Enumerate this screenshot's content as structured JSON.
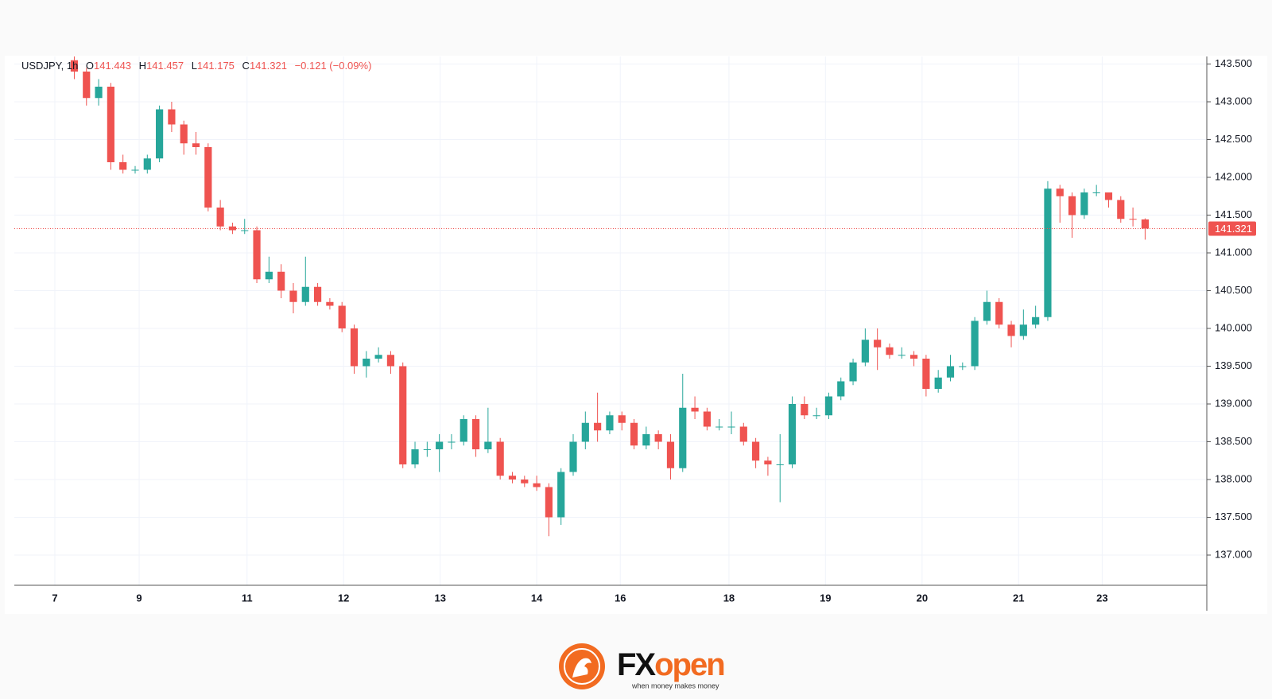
{
  "chart_data": {
    "type": "candlestick",
    "symbol": "USDJPY, 1h",
    "ohlc_labels": [
      "O",
      "H",
      "L",
      "C"
    ],
    "change_label": "−0.121 (−0.09%)",
    "up_color": "#26a69a",
    "down_color": "#ef5350",
    "grid": true,
    "x": [
      0,
      1,
      2,
      3,
      4,
      5,
      6,
      7,
      8,
      9,
      10,
      11,
      12,
      13,
      14,
      15,
      16,
      17,
      18,
      19,
      20,
      21,
      22,
      23,
      24,
      25,
      26,
      27,
      28,
      29,
      30,
      31,
      32,
      33,
      34,
      35,
      36,
      37,
      38,
      39,
      40,
      41,
      42,
      43,
      44,
      45,
      46,
      47,
      48,
      49,
      50,
      51,
      52,
      53,
      54,
      55,
      56,
      57,
      58,
      59,
      60,
      61,
      62,
      63,
      64,
      65,
      66,
      67,
      68,
      69,
      70,
      71,
      72,
      73,
      74,
      75,
      76,
      77,
      78,
      79,
      80,
      81,
      82,
      83,
      84,
      85,
      86,
      87,
      88
    ],
    "open": [
      143.55,
      143.4,
      143.05,
      143.2,
      142.2,
      142.1,
      142.1,
      142.25,
      142.9,
      142.7,
      142.45,
      142.4,
      141.6,
      141.35,
      141.3,
      141.3,
      140.65,
      140.75,
      140.5,
      140.35,
      140.55,
      140.35,
      140.3,
      140.0,
      139.5,
      139.6,
      139.65,
      139.5,
      138.2,
      138.4,
      138.4,
      138.5,
      138.5,
      138.8,
      138.4,
      138.5,
      138.05,
      138.0,
      137.95,
      137.9,
      137.5,
      138.1,
      138.5,
      138.75,
      138.65,
      138.85,
      138.75,
      138.45,
      138.6,
      138.5,
      138.15,
      138.95,
      138.9,
      138.7,
      138.7,
      138.7,
      138.5,
      138.25,
      138.2,
      138.2,
      139.0,
      138.85,
      138.85,
      139.1,
      139.3,
      139.55,
      139.85,
      139.75,
      139.65,
      139.65,
      139.6,
      139.2,
      139.35,
      139.5,
      139.5,
      140.1,
      140.35,
      140.05,
      139.9,
      140.05,
      140.15,
      141.85,
      141.75,
      141.5,
      141.8,
      141.8,
      141.7,
      141.45,
      141.443
    ],
    "high": [
      143.6,
      143.45,
      143.3,
      143.25,
      142.3,
      142.15,
      142.3,
      142.95,
      143.0,
      142.75,
      142.6,
      142.45,
      141.7,
      141.4,
      141.45,
      141.35,
      140.95,
      140.85,
      140.6,
      140.95,
      140.6,
      140.4,
      140.35,
      140.05,
      139.7,
      139.75,
      139.7,
      139.55,
      138.5,
      138.5,
      138.6,
      138.6,
      138.85,
      138.85,
      138.95,
      138.55,
      138.1,
      138.05,
      138.05,
      137.95,
      138.15,
      138.6,
      138.9,
      139.15,
      138.9,
      138.9,
      138.8,
      138.7,
      138.65,
      138.6,
      139.4,
      139.1,
      138.95,
      138.8,
      138.9,
      138.75,
      138.55,
      138.3,
      138.6,
      139.1,
      139.1,
      138.95,
      139.15,
      139.35,
      139.6,
      140.0,
      140.0,
      139.8,
      139.75,
      139.7,
      139.65,
      139.45,
      139.65,
      139.55,
      140.15,
      140.5,
      140.4,
      140.1,
      140.25,
      140.3,
      141.95,
      141.9,
      141.8,
      141.85,
      141.9,
      141.8,
      141.75,
      141.6,
      141.457
    ],
    "low": [
      143.3,
      142.95,
      142.95,
      142.1,
      142.05,
      142.05,
      142.05,
      142.2,
      142.6,
      142.3,
      142.3,
      141.55,
      141.3,
      141.25,
      141.25,
      140.6,
      140.6,
      140.4,
      140.2,
      140.3,
      140.3,
      140.25,
      139.95,
      139.4,
      139.35,
      139.55,
      139.4,
      138.15,
      138.15,
      138.3,
      138.1,
      138.4,
      138.45,
      138.3,
      138.35,
      138.0,
      137.95,
      137.9,
      137.85,
      137.25,
      137.4,
      138.05,
      138.4,
      138.5,
      138.6,
      138.65,
      138.4,
      138.4,
      138.4,
      138.0,
      138.1,
      138.8,
      138.65,
      138.65,
      138.6,
      138.45,
      138.15,
      138.05,
      137.7,
      138.15,
      138.8,
      138.8,
      138.8,
      139.05,
      139.25,
      139.5,
      139.45,
      139.6,
      139.6,
      139.5,
      139.1,
      139.15,
      139.3,
      139.45,
      139.45,
      140.05,
      140.0,
      139.75,
      139.85,
      140.0,
      140.1,
      141.4,
      141.2,
      141.45,
      141.75,
      141.6,
      141.4,
      141.35,
      141.175
    ],
    "close": [
      143.4,
      143.05,
      143.2,
      142.2,
      142.1,
      142.1,
      142.25,
      142.9,
      142.7,
      142.45,
      142.4,
      141.6,
      141.35,
      141.3,
      141.3,
      140.65,
      140.75,
      140.5,
      140.35,
      140.55,
      140.35,
      140.3,
      140.0,
      139.5,
      139.6,
      139.65,
      139.5,
      138.2,
      138.4,
      138.4,
      138.5,
      138.5,
      138.8,
      138.4,
      138.5,
      138.05,
      138.0,
      137.95,
      137.9,
      137.5,
      138.1,
      138.5,
      138.75,
      138.65,
      138.85,
      138.75,
      138.45,
      138.6,
      138.5,
      138.15,
      138.95,
      138.9,
      138.7,
      138.7,
      138.7,
      138.5,
      138.25,
      138.2,
      138.2,
      139.0,
      138.85,
      138.85,
      139.1,
      139.3,
      139.55,
      139.85,
      139.75,
      139.65,
      139.65,
      139.6,
      139.2,
      139.35,
      139.5,
      139.5,
      140.1,
      140.35,
      140.05,
      139.9,
      140.05,
      140.15,
      141.85,
      141.75,
      141.5,
      141.8,
      141.8,
      141.7,
      141.45,
      141.443,
      141.321
    ],
    "xlim": [
      -4.93,
      93.07
    ],
    "xticks": [
      {
        "value": -1.6,
        "label": "7"
      },
      {
        "value": 5.33,
        "label": "9"
      },
      {
        "value": 14.2,
        "label": "11"
      },
      {
        "value": 22.13,
        "label": "12"
      },
      {
        "value": 30.07,
        "label": "13"
      },
      {
        "value": 38,
        "label": "14"
      },
      {
        "value": 44.87,
        "label": "16"
      },
      {
        "value": 53.8,
        "label": "18"
      },
      {
        "value": 61.73,
        "label": "19"
      },
      {
        "value": 69.67,
        "label": "20"
      },
      {
        "value": 77.6,
        "label": "21"
      },
      {
        "value": 84.47,
        "label": "23"
      }
    ],
    "ylim": [
      136.6,
      143.6
    ],
    "yticks": [
      {
        "value": 137,
        "label": "137.000"
      },
      {
        "value": 137.5,
        "label": "137.500"
      },
      {
        "value": 138,
        "label": "138.000"
      },
      {
        "value": 138.5,
        "label": "138.500"
      },
      {
        "value": 139,
        "label": "139.000"
      },
      {
        "value": 139.5,
        "label": "139.500"
      },
      {
        "value": 140,
        "label": "140.000"
      },
      {
        "value": 140.5,
        "label": "140.500"
      },
      {
        "value": 141,
        "label": "141.000"
      },
      {
        "value": 141.5,
        "label": "141.500"
      },
      {
        "value": 142,
        "label": "142.000"
      },
      {
        "value": 142.5,
        "label": "142.500"
      },
      {
        "value": 143,
        "label": "143.000"
      },
      {
        "value": 143.5,
        "label": "143.500"
      }
    ]
  },
  "logo": {
    "brand_a": "FX",
    "brand_b": "open",
    "tagline": "when money makes money"
  }
}
